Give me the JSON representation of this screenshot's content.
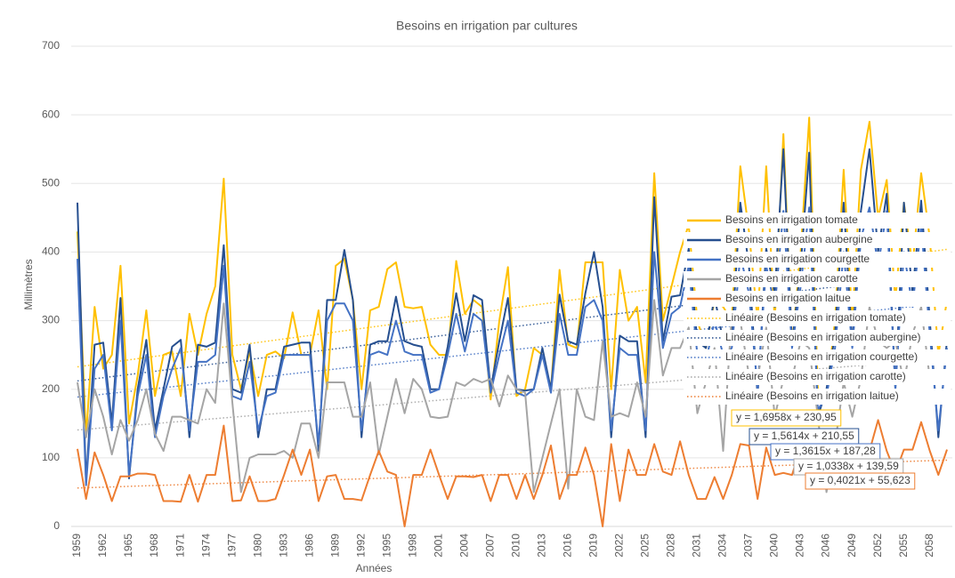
{
  "chart_data": {
    "type": "line",
    "title": "Besoins en irrigation par cultures",
    "x_label": "Années",
    "y_label": "Millimètres",
    "categories": [
      1959,
      null,
      null,
      1962,
      null,
      null,
      1965,
      null,
      null,
      1968,
      null,
      null,
      1971,
      null,
      null,
      1974,
      null,
      null,
      1977,
      null,
      null,
      1980,
      null,
      null,
      1983,
      null,
      null,
      1986,
      null,
      null,
      1989,
      null,
      null,
      1992,
      null,
      null,
      1995,
      null,
      null,
      1998,
      null,
      null,
      2001,
      null,
      null,
      2004,
      null,
      null,
      2007,
      null,
      null,
      2010,
      null,
      null,
      2013,
      null,
      null,
      2016,
      null,
      null,
      2019,
      null,
      null,
      2022,
      null,
      null,
      2025,
      null,
      null,
      2028,
      null,
      null,
      2031,
      null,
      null,
      2034,
      null,
      null,
      2037,
      null,
      null,
      2040,
      null,
      null,
      2043,
      null,
      null,
      2046,
      null,
      null,
      2049,
      null,
      null,
      2052,
      null,
      null,
      2055,
      null,
      null,
      2058,
      null,
      null
    ],
    "ylim": [
      0,
      700
    ],
    "yticks": [
      0,
      100,
      200,
      300,
      400,
      500,
      600,
      700
    ],
    "grid": true,
    "legend": "right",
    "series": [
      {
        "name": "Besoins en irrigation tomate",
        "color": "#ffc000",
        "values": [
          430,
          130,
          320,
          230,
          250,
          380,
          150,
          220,
          315,
          190,
          250,
          255,
          190,
          310,
          250,
          310,
          350,
          507,
          250,
          200,
          255,
          190,
          250,
          255,
          245,
          312,
          250,
          250,
          315,
          200,
          380,
          390,
          330,
          200,
          315,
          320,
          375,
          385,
          320,
          318,
          320,
          265,
          250,
          250,
          387,
          310,
          330,
          320,
          185,
          300,
          378,
          190,
          200,
          260,
          250,
          200,
          374,
          265,
          260,
          385,
          385,
          385,
          200,
          374,
          300,
          320,
          210,
          515,
          300,
          350,
          400,
          440,
          300,
          260,
          330,
          320,
          300,
          525,
          430,
          300,
          525,
          300,
          572,
          265,
          400,
          596,
          200,
          190,
          300,
          520,
          300,
          520,
          590,
          450,
          505,
          330,
          472,
          380,
          515,
          420,
          250,
          330
        ]
      },
      {
        "name": "Besoins en irrigation aubergine",
        "color": "#264f8f",
        "values": [
          472,
          65,
          265,
          268,
          150,
          333,
          70,
          200,
          272,
          140,
          200,
          262,
          272,
          130,
          265,
          262,
          268,
          410,
          200,
          195,
          265,
          130,
          200,
          200,
          262,
          265,
          268,
          268,
          110,
          330,
          330,
          403,
          330,
          130,
          265,
          270,
          270,
          335,
          270,
          265,
          262,
          200,
          200,
          262,
          340,
          270,
          337,
          330,
          200,
          270,
          333,
          200,
          198,
          200,
          260,
          200,
          338,
          270,
          265,
          340,
          400,
          320,
          130,
          278,
          270,
          270,
          130,
          480,
          270,
          335,
          337,
          405,
          270,
          260,
          335,
          270,
          275,
          472,
          380,
          190,
          405,
          340,
          550,
          265,
          380,
          545,
          160,
          200,
          280,
          472,
          265,
          460,
          550,
          400,
          485,
          200,
          472,
          340,
          475,
          300,
          130,
          272
        ]
      },
      {
        "name": "Besoins en irrigation courgette",
        "color": "#4472c4",
        "values": [
          390,
          60,
          230,
          250,
          140,
          300,
          75,
          190,
          250,
          130,
          190,
          230,
          260,
          140,
          240,
          240,
          250,
          380,
          190,
          185,
          240,
          140,
          190,
          195,
          250,
          250,
          250,
          250,
          120,
          300,
          325,
          325,
          300,
          140,
          250,
          255,
          250,
          300,
          255,
          250,
          250,
          195,
          200,
          250,
          310,
          255,
          310,
          300,
          195,
          250,
          300,
          195,
          190,
          200,
          250,
          195,
          310,
          250,
          250,
          320,
          330,
          300,
          140,
          260,
          250,
          250,
          140,
          400,
          260,
          310,
          320,
          380,
          250,
          240,
          300,
          250,
          260,
          395,
          340,
          200,
          380,
          320,
          460,
          260,
          350,
          465,
          170,
          190,
          260,
          400,
          260,
          420,
          465,
          380,
          460,
          200,
          400,
          320,
          440,
          280,
          140,
          260
        ]
      },
      {
        "name": "Besoins en irrigation carotte",
        "color": "#a5a5a5",
        "values": [
          210,
          130,
          200,
          160,
          105,
          155,
          125,
          155,
          200,
          135,
          110,
          160,
          160,
          155,
          150,
          200,
          180,
          325,
          180,
          50,
          100,
          105,
          105,
          105,
          110,
          100,
          150,
          150,
          100,
          210,
          210,
          210,
          160,
          160,
          210,
          105,
          160,
          215,
          165,
          215,
          200,
          160,
          158,
          160,
          210,
          205,
          215,
          210,
          215,
          175,
          220,
          200,
          195,
          50,
          100,
          150,
          200,
          55,
          200,
          160,
          155,
          270,
          160,
          165,
          160,
          210,
          160,
          330,
          220,
          260,
          260,
          290,
          165,
          210,
          260,
          110,
          310,
          300,
          220,
          215,
          290,
          160,
          215,
          215,
          270,
          260,
          160,
          50,
          120,
          210,
          160,
          215,
          320,
          270,
          260,
          270,
          210,
          280,
          320,
          215,
          220,
          210
        ]
      },
      {
        "name": "Besoins en irrigation laitue",
        "color": "#ed7d31",
        "values": [
          113,
          40,
          108,
          75,
          37,
          73,
          73,
          77,
          77,
          75,
          37,
          37,
          36,
          75,
          36,
          75,
          75,
          147,
          37,
          38,
          73,
          37,
          37,
          40,
          75,
          112,
          75,
          112,
          37,
          73,
          75,
          40,
          40,
          38,
          75,
          110,
          80,
          75,
          0,
          75,
          75,
          112,
          75,
          40,
          73,
          73,
          72,
          75,
          37,
          75,
          75,
          40,
          75,
          40,
          75,
          118,
          40,
          75,
          75,
          115,
          75,
          0,
          120,
          37,
          112,
          75,
          75,
          120,
          80,
          75,
          124,
          75,
          40,
          40,
          72,
          40,
          75,
          120,
          118,
          40,
          115,
          75,
          78,
          75,
          115,
          112,
          75,
          73,
          75,
          110,
          115,
          75,
          110,
          155,
          110,
          78,
          112,
          112,
          152,
          110,
          75,
          112
        ]
      }
    ],
    "trendlines": [
      {
        "name": "Linéaire (Besoins en irrigation tomate)",
        "color": "#ffc000",
        "equation": "y = 1,6958x + 230,95",
        "slope": 1.6958,
        "intercept": 230.95
      },
      {
        "name": "Linéaire (Besoins en irrigation aubergine)",
        "color": "#264f8f",
        "equation": "y = 1,5614x + 210,55",
        "slope": 1.5614,
        "intercept": 210.55
      },
      {
        "name": "Linéaire (Besoins en irrigation courgette)",
        "color": "#4472c4",
        "equation": "y = 1,3615x + 187,28",
        "slope": 1.3615,
        "intercept": 187.28
      },
      {
        "name": "Linéaire (Besoins en irrigation carotte)",
        "color": "#a5a5a5",
        "equation": "y = 1,0338x + 139,59",
        "slope": 1.0338,
        "intercept": 139.59
      },
      {
        "name": "Linéaire (Besoins en irrigation laitue)",
        "color": "#ed7d31",
        "equation": "y = 0,4021x + 55,623",
        "slope": 0.4021,
        "intercept": 55.623
      }
    ]
  }
}
